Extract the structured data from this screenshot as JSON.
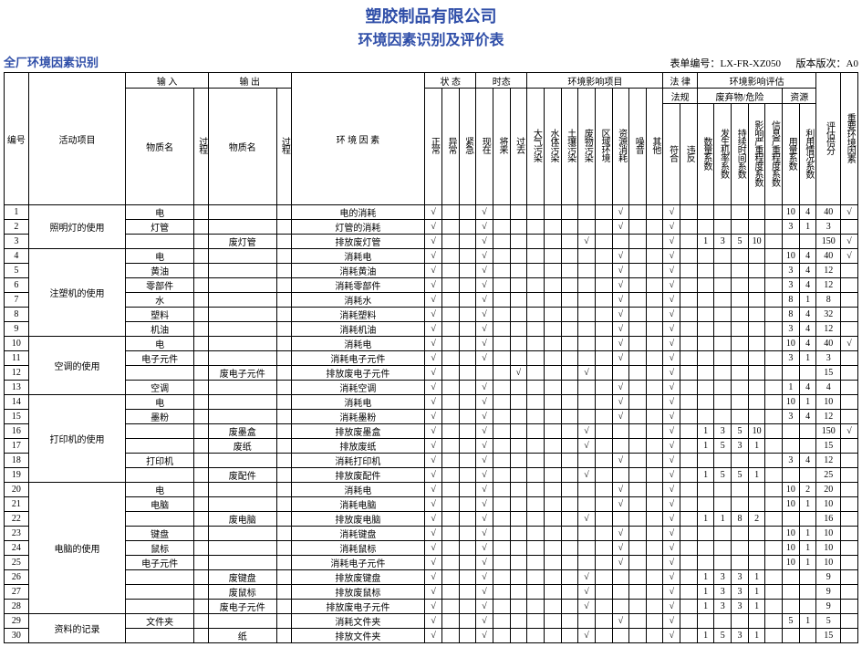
{
  "header": {
    "company": "塑胶制品有限公司",
    "title": "环境因素识别及评价表",
    "section": "全厂环境因素识别",
    "form_no_label": "表单编号：",
    "form_no": "LX-FR-XZ050",
    "version_label": "版本版次：",
    "version": "A0"
  },
  "columns": {
    "no": "编号",
    "proj": "活动项目",
    "in": "输 入",
    "out": "输 出",
    "mat": "物质名",
    "overflow": "过程",
    "factor": "环 境 因 素",
    "state": "状 态",
    "time": "时态",
    "normal": "正常",
    "abnormal": "异常",
    "emergency": "紧急",
    "now": "现在",
    "future": "将来",
    "past": "过去",
    "impacts": "环境影响项目",
    "air": "大气污染",
    "water": "水体污染",
    "soil": "土壤污染",
    "waste": "废物污染",
    "area": "区域环境",
    "resource": "资源消耗",
    "noise": "噪音",
    "other": "其他",
    "law": "法 律",
    "lawreg": "法规",
    "conform": "符合",
    "violate": "违反",
    "eval": "环境影响评估",
    "eval_sub": "废弃物/危险",
    "res": "资源",
    "qty": "数量系数",
    "life": "发生机率系数",
    "duration": "持续时间系数",
    "range": "影响严重程度系数",
    "sev": "信息严重程度系数",
    "use": "用量系数",
    "status": "利用情况系数",
    "score": "评估倍分",
    "major": "重要环境因素"
  },
  "rows": [
    {
      "no": 1,
      "proj": "照明灯的使用",
      "in": "电",
      "factor": "电的消耗",
      "st": [
        1,
        0,
        0
      ],
      "tm": [
        1,
        0,
        0
      ],
      "imp": [
        0,
        0,
        0,
        0,
        0,
        1,
        0,
        0
      ],
      "law": [
        1,
        0
      ],
      "ev": [
        "",
        "",
        "",
        "",
        "",
        "10",
        "4"
      ],
      "score": "40",
      "major": "√"
    },
    {
      "no": 2,
      "proj": "",
      "in": "灯管",
      "factor": "灯管的消耗",
      "st": [
        1,
        0,
        0
      ],
      "tm": [
        1,
        0,
        0
      ],
      "imp": [
        0,
        0,
        0,
        0,
        0,
        1,
        0,
        0
      ],
      "law": [
        1,
        0
      ],
      "ev": [
        "",
        "",
        "",
        "",
        "",
        "3",
        "1"
      ],
      "score": "3",
      "major": ""
    },
    {
      "no": 3,
      "proj": "",
      "out": "废灯管",
      "factor": "排放废灯管",
      "st": [
        1,
        0,
        0
      ],
      "tm": [
        1,
        0,
        0
      ],
      "imp": [
        0,
        0,
        0,
        1,
        0,
        0,
        0,
        0
      ],
      "law": [
        1,
        0
      ],
      "ev": [
        "1",
        "3",
        "5",
        "10",
        "",
        "",
        ""
      ],
      "score": "150",
      "major": "√"
    },
    {
      "no": 4,
      "proj": "注塑机的使用",
      "in": "电",
      "factor": "消耗电",
      "st": [
        1,
        0,
        0
      ],
      "tm": [
        1,
        0,
        0
      ],
      "imp": [
        0,
        0,
        0,
        0,
        0,
        1,
        0,
        0
      ],
      "law": [
        1,
        0
      ],
      "ev": [
        "",
        "",
        "",
        "",
        "",
        "10",
        "4"
      ],
      "score": "40",
      "major": "√"
    },
    {
      "no": 5,
      "proj": "",
      "in": "黄油",
      "factor": "消耗黄油",
      "st": [
        1,
        0,
        0
      ],
      "tm": [
        1,
        0,
        0
      ],
      "imp": [
        0,
        0,
        0,
        0,
        0,
        1,
        0,
        0
      ],
      "law": [
        1,
        0
      ],
      "ev": [
        "",
        "",
        "",
        "",
        "",
        "3",
        "4"
      ],
      "score": "12",
      "major": ""
    },
    {
      "no": 6,
      "proj": "",
      "in": "零部件",
      "factor": "消耗零部件",
      "st": [
        1,
        0,
        0
      ],
      "tm": [
        1,
        0,
        0
      ],
      "imp": [
        0,
        0,
        0,
        0,
        0,
        1,
        0,
        0
      ],
      "law": [
        1,
        0
      ],
      "ev": [
        "",
        "",
        "",
        "",
        "",
        "3",
        "4"
      ],
      "score": "12",
      "major": ""
    },
    {
      "no": 7,
      "proj": "",
      "in": "水",
      "factor": "消耗水",
      "st": [
        1,
        0,
        0
      ],
      "tm": [
        1,
        0,
        0
      ],
      "imp": [
        0,
        0,
        0,
        0,
        0,
        1,
        0,
        0
      ],
      "law": [
        1,
        0
      ],
      "ev": [
        "",
        "",
        "",
        "",
        "",
        "8",
        "1"
      ],
      "score": "8",
      "major": ""
    },
    {
      "no": 8,
      "proj": "",
      "in": "塑料",
      "factor": "消耗塑料",
      "st": [
        1,
        0,
        0
      ],
      "tm": [
        1,
        0,
        0
      ],
      "imp": [
        0,
        0,
        0,
        0,
        0,
        1,
        0,
        0
      ],
      "law": [
        1,
        0
      ],
      "ev": [
        "",
        "",
        "",
        "",
        "",
        "8",
        "4"
      ],
      "score": "32",
      "major": ""
    },
    {
      "no": 9,
      "proj": "",
      "in": "机油",
      "factor": "消耗机油",
      "st": [
        1,
        0,
        0
      ],
      "tm": [
        1,
        0,
        0
      ],
      "imp": [
        0,
        0,
        0,
        0,
        0,
        1,
        0,
        0
      ],
      "law": [
        1,
        0
      ],
      "ev": [
        "",
        "",
        "",
        "",
        "",
        "3",
        "4"
      ],
      "score": "12",
      "major": ""
    },
    {
      "no": 10,
      "proj": "空调的使用",
      "in": "电",
      "factor": "消耗电",
      "st": [
        1,
        0,
        0
      ],
      "tm": [
        1,
        0,
        0
      ],
      "imp": [
        0,
        0,
        0,
        0,
        0,
        1,
        0,
        0
      ],
      "law": [
        1,
        0
      ],
      "ev": [
        "",
        "",
        "",
        "",
        "",
        "10",
        "4"
      ],
      "score": "40",
      "major": "√"
    },
    {
      "no": 11,
      "proj": "",
      "in": "电子元件",
      "factor": "消耗电子元件",
      "st": [
        1,
        0,
        0
      ],
      "tm": [
        1,
        0,
        0
      ],
      "imp": [
        0,
        0,
        0,
        0,
        0,
        1,
        0,
        0
      ],
      "law": [
        1,
        0
      ],
      "ev": [
        "",
        "",
        "",
        "",
        "",
        "3",
        "1"
      ],
      "score": "3",
      "major": ""
    },
    {
      "no": 12,
      "proj": "",
      "out": "废电子元件",
      "factor": "排放废电子元件",
      "st": [
        1,
        0,
        0
      ],
      "tm": [
        0,
        0,
        1
      ],
      "imp": [
        0,
        0,
        0,
        1,
        0,
        0,
        0,
        0
      ],
      "law": [
        1,
        0
      ],
      "ev": [
        "",
        "",
        "",
        "",
        "",
        "",
        ""
      ],
      "score": "15",
      "major": ""
    },
    {
      "no": 13,
      "proj": "",
      "in": "空调",
      "factor": "消耗空调",
      "st": [
        1,
        0,
        0
      ],
      "tm": [
        1,
        0,
        0
      ],
      "imp": [
        0,
        0,
        0,
        0,
        0,
        1,
        0,
        0
      ],
      "law": [
        1,
        0
      ],
      "ev": [
        "",
        "",
        "",
        "",
        "",
        "1",
        "4"
      ],
      "score": "4",
      "major": ""
    },
    {
      "no": 14,
      "proj": "打印机的使用",
      "in": "电",
      "factor": "消耗电",
      "st": [
        1,
        0,
        0
      ],
      "tm": [
        1,
        0,
        0
      ],
      "imp": [
        0,
        0,
        0,
        0,
        0,
        1,
        0,
        0
      ],
      "law": [
        1,
        0
      ],
      "ev": [
        "",
        "",
        "",
        "",
        "",
        "10",
        "1"
      ],
      "score": "10",
      "major": ""
    },
    {
      "no": 15,
      "proj": "",
      "in": "墨粉",
      "factor": "消耗墨粉",
      "st": [
        1,
        0,
        0
      ],
      "tm": [
        1,
        0,
        0
      ],
      "imp": [
        0,
        0,
        0,
        0,
        0,
        1,
        0,
        0
      ],
      "law": [
        1,
        0
      ],
      "ev": [
        "",
        "",
        "",
        "",
        "",
        "3",
        "4"
      ],
      "score": "12",
      "major": ""
    },
    {
      "no": 16,
      "proj": "",
      "out": "废墨盒",
      "factor": "排放废墨盒",
      "st": [
        1,
        0,
        0
      ],
      "tm": [
        1,
        0,
        0
      ],
      "imp": [
        0,
        0,
        0,
        1,
        0,
        0,
        0,
        0
      ],
      "law": [
        1,
        0
      ],
      "ev": [
        "1",
        "3",
        "5",
        "10",
        "",
        "",
        ""
      ],
      "score": "150",
      "major": "√"
    },
    {
      "no": 17,
      "proj": "",
      "out": "废纸",
      "factor": "排放废纸",
      "st": [
        1,
        0,
        0
      ],
      "tm": [
        1,
        0,
        0
      ],
      "imp": [
        0,
        0,
        0,
        1,
        0,
        0,
        0,
        0
      ],
      "law": [
        1,
        0
      ],
      "ev": [
        "1",
        "5",
        "3",
        "1",
        "",
        "",
        ""
      ],
      "score": "15",
      "major": ""
    },
    {
      "no": 18,
      "proj": "",
      "in": "打印机",
      "factor": "消耗打印机",
      "st": [
        1,
        0,
        0
      ],
      "tm": [
        1,
        0,
        0
      ],
      "imp": [
        0,
        0,
        0,
        0,
        0,
        1,
        0,
        0
      ],
      "law": [
        1,
        0
      ],
      "ev": [
        "",
        "",
        "",
        "",
        "",
        "3",
        "4"
      ],
      "score": "12",
      "major": ""
    },
    {
      "no": 19,
      "proj": "",
      "out": "废配件",
      "factor": "排放废配件",
      "st": [
        1,
        0,
        0
      ],
      "tm": [
        1,
        0,
        0
      ],
      "imp": [
        0,
        0,
        0,
        1,
        0,
        0,
        0,
        0
      ],
      "law": [
        1,
        0
      ],
      "ev": [
        "1",
        "5",
        "5",
        "1",
        "",
        "",
        ""
      ],
      "score": "25",
      "major": ""
    },
    {
      "no": 20,
      "proj": "电脑的使用",
      "in": "电",
      "factor": "消耗电",
      "st": [
        1,
        0,
        0
      ],
      "tm": [
        1,
        0,
        0
      ],
      "imp": [
        0,
        0,
        0,
        0,
        0,
        1,
        0,
        0
      ],
      "law": [
        1,
        0
      ],
      "ev": [
        "",
        "",
        "",
        "",
        "",
        "10",
        "2"
      ],
      "score": "20",
      "major": ""
    },
    {
      "no": 21,
      "proj": "",
      "in": "电脑",
      "factor": "消耗电脑",
      "st": [
        1,
        0,
        0
      ],
      "tm": [
        1,
        0,
        0
      ],
      "imp": [
        0,
        0,
        0,
        0,
        0,
        1,
        0,
        0
      ],
      "law": [
        1,
        0
      ],
      "ev": [
        "",
        "",
        "",
        "",
        "",
        "10",
        "1"
      ],
      "score": "10",
      "major": ""
    },
    {
      "no": 22,
      "proj": "",
      "out": "废电脑",
      "factor": "排放废电脑",
      "st": [
        1,
        0,
        0
      ],
      "tm": [
        1,
        0,
        0
      ],
      "imp": [
        0,
        0,
        0,
        1,
        0,
        0,
        0,
        0
      ],
      "law": [
        1,
        0
      ],
      "ev": [
        "1",
        "1",
        "8",
        "2",
        "",
        "",
        ""
      ],
      "score": "16",
      "major": ""
    },
    {
      "no": 23,
      "proj": "",
      "in": "键盘",
      "factor": "消耗键盘",
      "st": [
        1,
        0,
        0
      ],
      "tm": [
        1,
        0,
        0
      ],
      "imp": [
        0,
        0,
        0,
        0,
        0,
        1,
        0,
        0
      ],
      "law": [
        1,
        0
      ],
      "ev": [
        "",
        "",
        "",
        "",
        "",
        "10",
        "1"
      ],
      "score": "10",
      "major": ""
    },
    {
      "no": 24,
      "proj": "",
      "in": "鼠标",
      "factor": "消耗鼠标",
      "st": [
        1,
        0,
        0
      ],
      "tm": [
        1,
        0,
        0
      ],
      "imp": [
        0,
        0,
        0,
        0,
        0,
        1,
        0,
        0
      ],
      "law": [
        1,
        0
      ],
      "ev": [
        "",
        "",
        "",
        "",
        "",
        "10",
        "1"
      ],
      "score": "10",
      "major": ""
    },
    {
      "no": 25,
      "proj": "",
      "in": "电子元件",
      "factor": "消耗电子元件",
      "st": [
        1,
        0,
        0
      ],
      "tm": [
        1,
        0,
        0
      ],
      "imp": [
        0,
        0,
        0,
        0,
        0,
        1,
        0,
        0
      ],
      "law": [
        1,
        0
      ],
      "ev": [
        "",
        "",
        "",
        "",
        "",
        "10",
        "1"
      ],
      "score": "10",
      "major": ""
    },
    {
      "no": 26,
      "proj": "",
      "out": "废键盘",
      "factor": "排放废键盘",
      "st": [
        1,
        0,
        0
      ],
      "tm": [
        1,
        0,
        0
      ],
      "imp": [
        0,
        0,
        0,
        1,
        0,
        0,
        0,
        0
      ],
      "law": [
        1,
        0
      ],
      "ev": [
        "1",
        "3",
        "3",
        "1",
        "",
        "",
        ""
      ],
      "score": "9",
      "major": ""
    },
    {
      "no": 27,
      "proj": "",
      "out": "废鼠标",
      "factor": "排放废鼠标",
      "st": [
        1,
        0,
        0
      ],
      "tm": [
        1,
        0,
        0
      ],
      "imp": [
        0,
        0,
        0,
        1,
        0,
        0,
        0,
        0
      ],
      "law": [
        1,
        0
      ],
      "ev": [
        "1",
        "3",
        "3",
        "1",
        "",
        "",
        ""
      ],
      "score": "9",
      "major": ""
    },
    {
      "no": 28,
      "proj": "",
      "out": "废电子元件",
      "factor": "排放废电子元件",
      "st": [
        1,
        0,
        0
      ],
      "tm": [
        1,
        0,
        0
      ],
      "imp": [
        0,
        0,
        0,
        1,
        0,
        0,
        0,
        0
      ],
      "law": [
        1,
        0
      ],
      "ev": [
        "1",
        "3",
        "3",
        "1",
        "",
        "",
        ""
      ],
      "score": "9",
      "major": ""
    },
    {
      "no": 29,
      "proj": "资料的记录",
      "in": "文件夹",
      "factor": "消耗文件夹",
      "st": [
        1,
        0,
        0
      ],
      "tm": [
        1,
        0,
        0
      ],
      "imp": [
        0,
        0,
        0,
        0,
        0,
        1,
        0,
        0
      ],
      "law": [
        1,
        0
      ],
      "ev": [
        "",
        "",
        "",
        "",
        "",
        "5",
        "1"
      ],
      "score": "5",
      "major": ""
    },
    {
      "no": 30,
      "proj": "",
      "out": "纸",
      "factor": "排放文件夹",
      "st": [
        1,
        0,
        0
      ],
      "tm": [
        1,
        0,
        0
      ],
      "imp": [
        0,
        0,
        0,
        1,
        0,
        0,
        0,
        0
      ],
      "law": [
        1,
        0
      ],
      "ev": [
        "1",
        "5",
        "3",
        "1",
        "",
        "",
        ""
      ],
      "score": "15",
      "major": ""
    }
  ],
  "proj_spans": [
    {
      "start": 1,
      "span": 3,
      "name": "照明灯的使用"
    },
    {
      "start": 4,
      "span": 6,
      "name": "注塑机的使用"
    },
    {
      "start": 10,
      "span": 4,
      "name": "空调的使用"
    },
    {
      "start": 14,
      "span": 6,
      "name": "打印机的使用"
    },
    {
      "start": 20,
      "span": 9,
      "name": "电脑的使用"
    },
    {
      "start": 29,
      "span": 2,
      "name": "资料的记录"
    }
  ],
  "style": {
    "title_color": "#2f4ea8",
    "border": "#000",
    "check": "√"
  }
}
